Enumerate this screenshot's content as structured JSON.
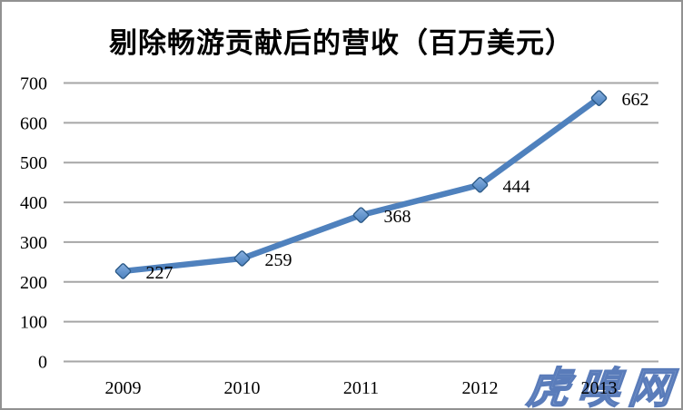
{
  "chart_data": {
    "type": "line",
    "title": "剔除畅游贡献后的营收（百万美元）",
    "categories": [
      "2009",
      "2010",
      "2011",
      "2012",
      "2013"
    ],
    "series": [
      {
        "name": "剔除畅游贡献后的营收",
        "values": [
          227,
          259,
          368,
          444,
          662
        ]
      }
    ],
    "data_labels": [
      "227",
      "259",
      "368",
      "444",
      "662"
    ],
    "xlabel": "",
    "ylabel": "",
    "ylim": [
      0,
      700
    ],
    "yticks": [
      0,
      100,
      200,
      300,
      400,
      500,
      600,
      700
    ],
    "grid": "horizontal",
    "legend": "none",
    "line_color": "#4f81bd",
    "marker": "diamond",
    "marker_fill_light": "#8db3e2",
    "marker_fill_dark": "#4f81bd",
    "marker_border_color": "#2c5a87",
    "gridline_color": "#a6a6a6"
  },
  "watermark": {
    "text": "虎嗅网",
    "color": "#7f9ccd"
  }
}
